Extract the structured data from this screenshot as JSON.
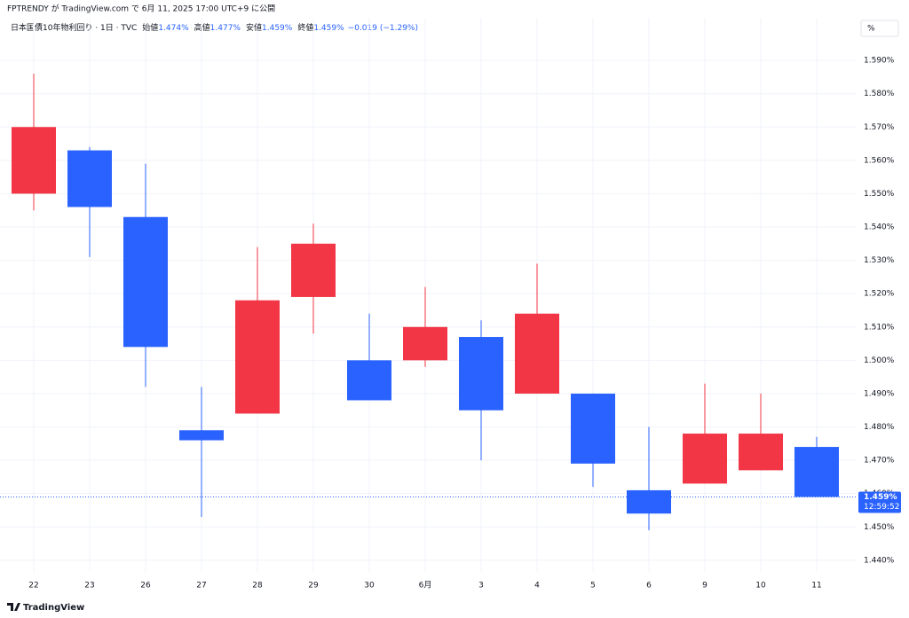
{
  "chart_data": {
    "type": "candlestick",
    "published": "FPTRENDY が TradingView.com で 6月 11, 2025 17:00 UTC+9 に公開",
    "symbol": "日本国債10年物利回り · 1日 · TVC",
    "legend_values": [
      {
        "label": "始値",
        "value": "1.474%"
      },
      {
        "label": "高値",
        "value": "1.477%"
      },
      {
        "label": "安値",
        "value": "1.459%"
      },
      {
        "label": "終値",
        "value": "1.459%"
      }
    ],
    "change": "−0.019 (−1.29%)",
    "scale_button": "%",
    "footer": "TradingView",
    "categories": [
      "22",
      "23",
      "26",
      "27",
      "28",
      "29",
      "30",
      "6月",
      "3",
      "4",
      "5",
      "6",
      "9",
      "10",
      "11"
    ],
    "open": [
      1.55,
      1.563,
      1.543,
      1.479,
      1.484,
      1.519,
      1.5,
      1.5,
      1.507,
      1.49,
      1.49,
      1.461,
      1.463,
      1.467,
      1.474
    ],
    "high": [
      1.586,
      1.564,
      1.559,
      1.492,
      1.534,
      1.541,
      1.514,
      1.522,
      1.512,
      1.529,
      1.49,
      1.48,
      1.493,
      1.49,
      1.477
    ],
    "low": [
      1.545,
      1.531,
      1.492,
      1.453,
      1.484,
      1.508,
      1.488,
      1.498,
      1.47,
      1.49,
      1.462,
      1.449,
      1.463,
      1.467,
      1.459
    ],
    "close": [
      1.57,
      1.546,
      1.504,
      1.476,
      1.518,
      1.535,
      1.488,
      1.51,
      1.485,
      1.514,
      1.469,
      1.454,
      1.478,
      1.478,
      1.459
    ],
    "up_color": "#f23645",
    "down_color": "#2962ff",
    "ylim": [
      1.4365,
      1.6028
    ],
    "yticks": [
      {
        "value": 1.44,
        "label": "1.440%"
      },
      {
        "value": 1.45,
        "label": "1.450%"
      },
      {
        "value": 1.46,
        "label": "1.460%"
      },
      {
        "value": 1.47,
        "label": "1.470%"
      },
      {
        "value": 1.48,
        "label": "1.480%"
      },
      {
        "value": 1.49,
        "label": "1.490%"
      },
      {
        "value": 1.5,
        "label": "1.500%"
      },
      {
        "value": 1.51,
        "label": "1.510%"
      },
      {
        "value": 1.52,
        "label": "1.520%"
      },
      {
        "value": 1.53,
        "label": "1.530%"
      },
      {
        "value": 1.54,
        "label": "1.540%"
      },
      {
        "value": 1.55,
        "label": "1.550%"
      },
      {
        "value": 1.56,
        "label": "1.560%"
      },
      {
        "value": 1.57,
        "label": "1.570%"
      },
      {
        "value": 1.58,
        "label": "1.580%"
      },
      {
        "value": 1.59,
        "label": "1.590%"
      }
    ],
    "last_price": {
      "value": 1.459,
      "label": "1.459%",
      "countdown": "12:59:52"
    },
    "grid": true
  }
}
